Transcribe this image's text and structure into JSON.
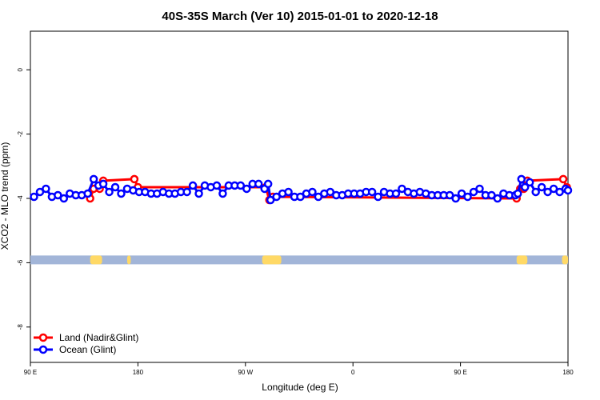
{
  "chart_data": {
    "type": "line",
    "title": "40S-35S March (Ver 10)   2015-01-01 to 2020-12-18",
    "xlabel": "Longitude (deg E)",
    "ylabel": "XCO2 - MLO trend (ppm)",
    "x_ticks": [
      {
        "value": 90,
        "label": "90 E"
      },
      {
        "value": 180,
        "label": "180"
      },
      {
        "value": 270,
        "label": "90 W"
      },
      {
        "value": 360,
        "label": "0"
      },
      {
        "value": 450,
        "label": "90 E"
      },
      {
        "value": 540,
        "label": "180"
      }
    ],
    "y_ticks": [
      0,
      -2,
      -4,
      -6,
      -8
    ],
    "xlim": [
      90,
      540
    ],
    "ylim": [
      -9.1,
      1.2
    ],
    "grid": false,
    "legend_position": "bottom-left",
    "colors": {
      "land": "#ff0000",
      "ocean": "#0000ff",
      "land_mask": "#ffd966",
      "ocean_mask": "#a2b5d8"
    },
    "series": [
      {
        "name": "Land (Nadir&Glint)",
        "color": "#ff0000",
        "points": [
          [
            140,
            -4.0
          ],
          [
            143,
            -3.7
          ],
          [
            148,
            -3.7
          ],
          [
            151,
            -3.45
          ],
          [
            177,
            -3.4
          ],
          [
            180,
            -3.65
          ],
          [
            287,
            -3.65
          ],
          [
            290,
            -4.05
          ],
          [
            293,
            -3.95
          ],
          [
            497,
            -4.0
          ],
          [
            500,
            -3.7
          ],
          [
            503,
            -3.7
          ],
          [
            506,
            -3.45
          ],
          [
            536,
            -3.4
          ],
          [
            539,
            -3.65
          ]
        ]
      },
      {
        "name": "Ocean (Glint)",
        "color": "#0000ff",
        "points": [
          [
            93,
            -3.95
          ],
          [
            98,
            -3.8
          ],
          [
            103,
            -3.7
          ],
          [
            108,
            -3.95
          ],
          [
            113,
            -3.9
          ],
          [
            118,
            -4.0
          ],
          [
            123,
            -3.85
          ],
          [
            128,
            -3.9
          ],
          [
            133,
            -3.9
          ],
          [
            138,
            -3.85
          ],
          [
            143,
            -3.4
          ],
          [
            147,
            -3.6
          ],
          [
            151,
            -3.55
          ],
          [
            156,
            -3.8
          ],
          [
            161,
            -3.65
          ],
          [
            166,
            -3.85
          ],
          [
            171,
            -3.7
          ],
          [
            176,
            -3.75
          ],
          [
            181,
            -3.8
          ],
          [
            186,
            -3.8
          ],
          [
            191,
            -3.85
          ],
          [
            196,
            -3.85
          ],
          [
            201,
            -3.8
          ],
          [
            206,
            -3.85
          ],
          [
            211,
            -3.85
          ],
          [
            216,
            -3.8
          ],
          [
            221,
            -3.8
          ],
          [
            226,
            -3.6
          ],
          [
            231,
            -3.85
          ],
          [
            236,
            -3.6
          ],
          [
            241,
            -3.65
          ],
          [
            246,
            -3.6
          ],
          [
            251,
            -3.85
          ],
          [
            256,
            -3.6
          ],
          [
            261,
            -3.6
          ],
          [
            266,
            -3.6
          ],
          [
            271,
            -3.7
          ],
          [
            276,
            -3.55
          ],
          [
            281,
            -3.55
          ],
          [
            286,
            -3.7
          ],
          [
            289,
            -3.55
          ],
          [
            291,
            -4.05
          ],
          [
            296,
            -3.95
          ],
          [
            301,
            -3.85
          ],
          [
            306,
            -3.8
          ],
          [
            311,
            -3.95
          ],
          [
            316,
            -3.95
          ],
          [
            321,
            -3.85
          ],
          [
            326,
            -3.8
          ],
          [
            331,
            -3.95
          ],
          [
            336,
            -3.85
          ],
          [
            341,
            -3.8
          ],
          [
            346,
            -3.9
          ],
          [
            351,
            -3.9
          ],
          [
            356,
            -3.85
          ],
          [
            361,
            -3.85
          ],
          [
            366,
            -3.85
          ],
          [
            371,
            -3.8
          ],
          [
            376,
            -3.8
          ],
          [
            381,
            -3.95
          ],
          [
            386,
            -3.8
          ],
          [
            391,
            -3.85
          ],
          [
            396,
            -3.85
          ],
          [
            401,
            -3.7
          ],
          [
            406,
            -3.8
          ],
          [
            411,
            -3.85
          ],
          [
            416,
            -3.8
          ],
          [
            421,
            -3.85
          ],
          [
            426,
            -3.9
          ],
          [
            431,
            -3.9
          ],
          [
            436,
            -3.9
          ],
          [
            441,
            -3.9
          ],
          [
            446,
            -4.0
          ],
          [
            451,
            -3.85
          ],
          [
            456,
            -3.95
          ],
          [
            461,
            -3.8
          ],
          [
            466,
            -3.7
          ],
          [
            471,
            -3.9
          ],
          [
            476,
            -3.9
          ],
          [
            481,
            -4.0
          ],
          [
            486,
            -3.85
          ],
          [
            491,
            -3.9
          ],
          [
            496,
            -3.9
          ],
          [
            498,
            -3.85
          ],
          [
            501,
            -3.4
          ],
          [
            504,
            -3.65
          ],
          [
            508,
            -3.5
          ],
          [
            513,
            -3.8
          ],
          [
            518,
            -3.65
          ],
          [
            523,
            -3.8
          ],
          [
            528,
            -3.7
          ],
          [
            533,
            -3.8
          ],
          [
            538,
            -3.7
          ],
          [
            540,
            -3.75
          ]
        ]
      }
    ],
    "land_mask": {
      "y": -5.9,
      "land_segments": [
        [
          140,
          150
        ],
        [
          171,
          174
        ],
        [
          284,
          300
        ],
        [
          497,
          506
        ],
        [
          535,
          540
        ]
      ]
    }
  }
}
